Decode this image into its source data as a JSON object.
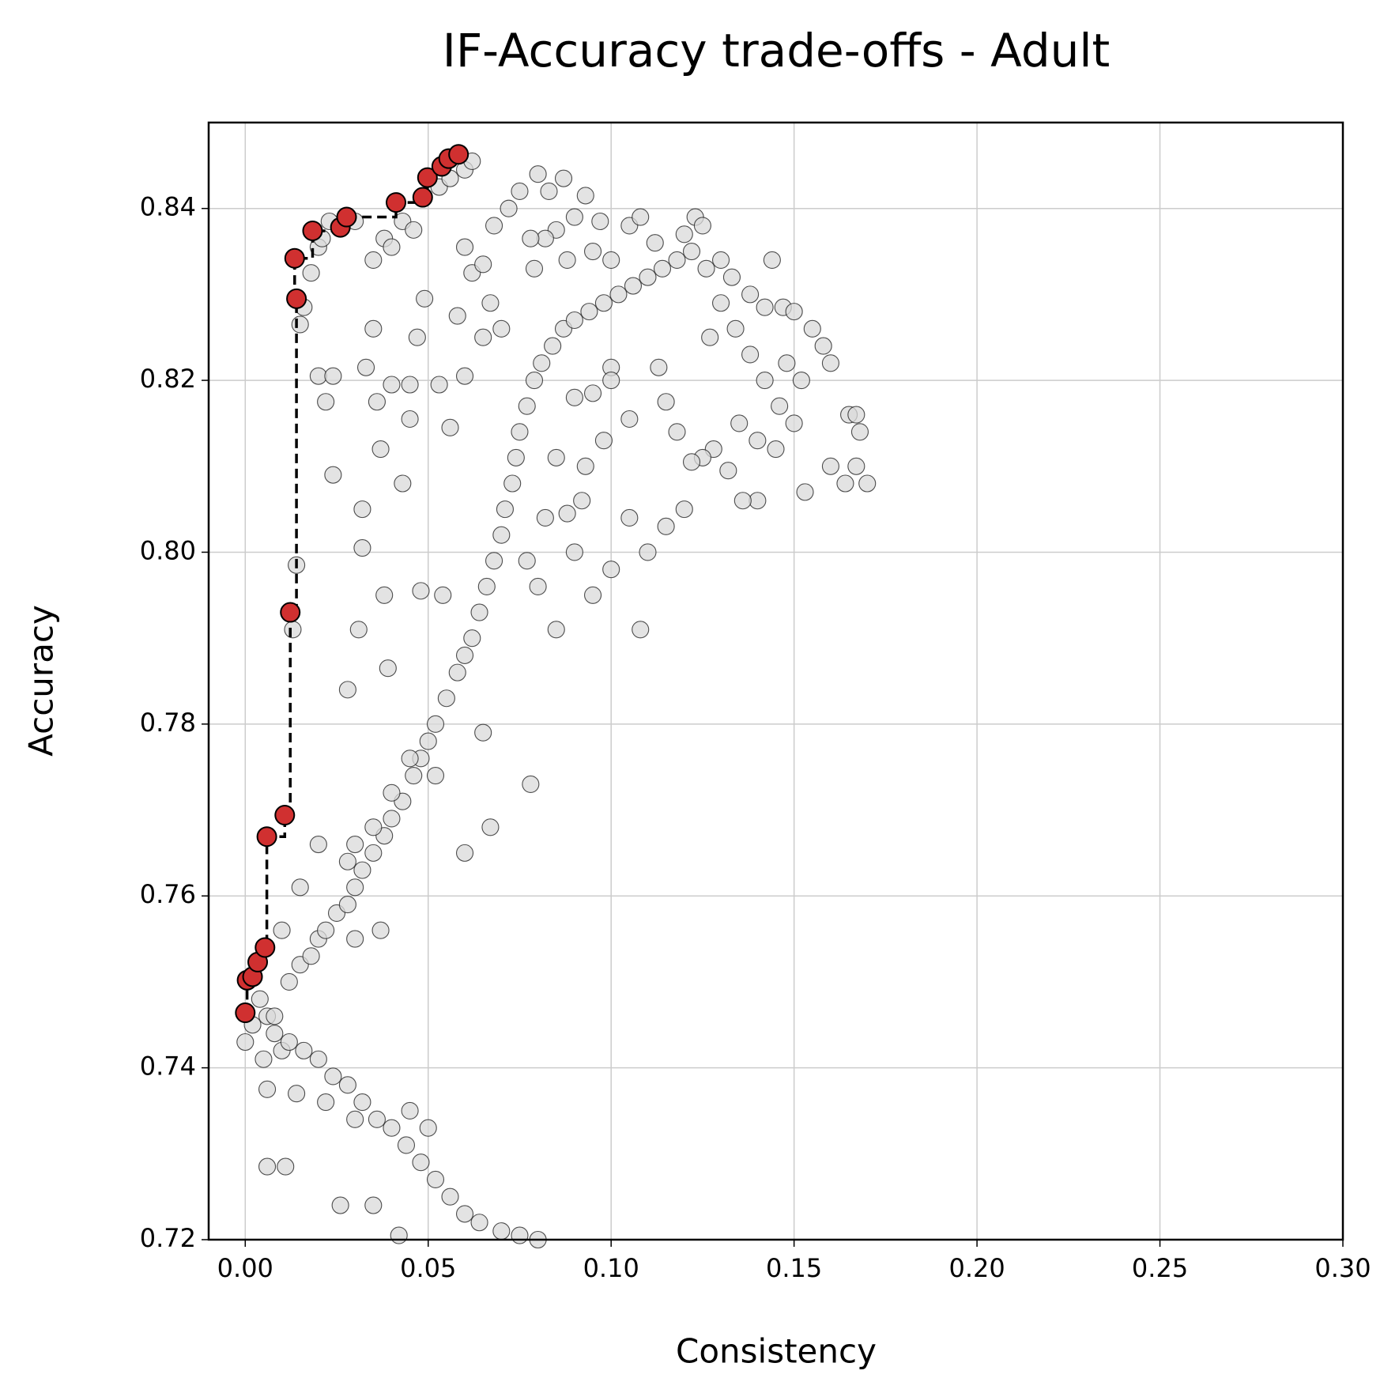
{
  "chart_data": {
    "type": "scatter",
    "title": "IF-Accuracy trade-offs - Adult",
    "x_label": "Consistency",
    "y_label": "Accuracy",
    "xlim": [
      -0.01,
      0.3
    ],
    "ylim": [
      0.72,
      0.85
    ],
    "xticks": [
      {
        "value": 0,
        "label": "0.00"
      },
      0.05,
      {
        "value": 0.1,
        "label": "0.10"
      },
      0.15,
      {
        "value": 0.2,
        "label": "0.20"
      },
      0.25,
      {
        "value": 0.3,
        "label": "0.30"
      }
    ],
    "yticks": [
      0.72,
      0.74,
      0.76,
      0.78,
      {
        "value": 0.8,
        "label": "0.80"
      },
      0.82,
      0.84
    ],
    "grid": true,
    "series": [
      {
        "color": "#d9d9d9",
        "x": [
          0,
          0.002,
          0.004,
          0.006,
          0.008,
          0.01,
          0.005,
          0.012,
          0.015,
          0.018,
          0.02,
          0.022,
          0.025,
          0.028,
          0.03,
          0.032,
          0.035,
          0.038,
          0.04,
          0.043,
          0.046,
          0.048,
          0.05,
          0.052,
          0.055,
          0.058,
          0.06,
          0.062,
          0.064,
          0.066,
          0.068,
          0.07,
          0.071,
          0.073,
          0.074,
          0.075,
          0.077,
          0.079,
          0.081,
          0.084,
          0.087,
          0.09,
          0.094,
          0.098,
          0.102,
          0.106,
          0.11,
          0.114,
          0.118,
          0.122,
          0.105,
          0.108,
          0.112,
          0.12,
          0.123,
          0.126,
          0.13,
          0.134,
          0.138,
          0.142,
          0.146,
          0.15,
          0.155,
          0.158,
          0.16,
          0.165,
          0.168,
          0.17,
          0.164,
          0.153,
          0.14,
          0.12,
          0.115,
          0.105,
          0.11,
          0.1,
          0.108,
          0.095,
          0.085,
          0.08,
          0.078,
          0.067,
          0.06,
          0.065,
          0.052,
          0.045,
          0.04,
          0.035,
          0.03,
          0.028,
          0.02,
          0.015,
          0.01,
          0.03,
          0.037,
          0.008,
          0.012,
          0.016,
          0.02,
          0.024,
          0.028,
          0.032,
          0.036,
          0.04,
          0.044,
          0.048,
          0.052,
          0.056,
          0.06,
          0.064,
          0.07,
          0.075,
          0.08,
          0.03,
          0.022,
          0.026,
          0.035,
          0.006,
          0.011,
          0.006,
          0.014,
          0.042,
          0.05,
          0.045,
          0.015,
          0.016,
          0.018,
          0.02,
          0.021,
          0.023,
          0.03,
          0.035,
          0.038,
          0.04,
          0.043,
          0.046,
          0.053,
          0.056,
          0.06,
          0.062,
          0.02,
          0.022,
          0.024,
          0.033,
          0.036,
          0.04,
          0.045,
          0.045,
          0.049,
          0.053,
          0.056,
          0.058,
          0.06,
          0.06,
          0.062,
          0.065,
          0.024,
          0.032,
          0.032,
          0.014,
          0.013,
          0.038,
          0.048,
          0.054,
          0.031,
          0.043,
          0.047,
          0.035,
          0.037,
          0.039,
          0.028,
          0.068,
          0.072,
          0.075,
          0.08,
          0.083,
          0.087,
          0.09,
          0.093,
          0.097,
          0.085,
          0.082,
          0.078,
          0.079,
          0.088,
          0.095,
          0.1,
          0.067,
          0.07,
          0.065,
          0.09,
          0.093,
          0.098,
          0.085,
          0.092,
          0.088,
          0.09,
          0.082,
          0.077,
          0.125,
          0.13,
          0.127,
          0.133,
          0.138,
          0.142,
          0.147,
          0.144,
          0.15,
          0.152,
          0.148,
          0.135,
          0.14,
          0.145,
          0.128,
          0.125,
          0.115,
          0.118,
          0.122,
          0.132,
          0.136,
          0.16,
          0.167,
          0.167,
          0.113,
          0.1,
          0.105,
          0.095,
          0.1
        ],
        "values": [
          0.743,
          0.745,
          0.748,
          0.746,
          0.744,
          0.742,
          0.741,
          0.75,
          0.752,
          0.753,
          0.755,
          0.756,
          0.758,
          0.759,
          0.761,
          0.763,
          0.765,
          0.767,
          0.769,
          0.771,
          0.774,
          0.776,
          0.778,
          0.78,
          0.783,
          0.786,
          0.788,
          0.79,
          0.793,
          0.796,
          0.799,
          0.802,
          0.805,
          0.808,
          0.811,
          0.814,
          0.817,
          0.82,
          0.822,
          0.824,
          0.826,
          0.827,
          0.828,
          0.829,
          0.83,
          0.831,
          0.832,
          0.833,
          0.834,
          0.835,
          0.838,
          0.839,
          0.836,
          0.837,
          0.839,
          0.833,
          0.829,
          0.826,
          0.823,
          0.82,
          0.817,
          0.815,
          0.826,
          0.824,
          0.822,
          0.816,
          0.814,
          0.808,
          0.808,
          0.807,
          0.806,
          0.805,
          0.803,
          0.804,
          0.8,
          0.798,
          0.791,
          0.795,
          0.791,
          0.796,
          0.773,
          0.768,
          0.765,
          0.779,
          0.774,
          0.776,
          0.772,
          0.768,
          0.766,
          0.764,
          0.766,
          0.761,
          0.756,
          0.755,
          0.756,
          0.746,
          0.743,
          0.742,
          0.741,
          0.739,
          0.738,
          0.736,
          0.734,
          0.733,
          0.731,
          0.729,
          0.727,
          0.725,
          0.723,
          0.722,
          0.721,
          0.7205,
          0.72,
          0.734,
          0.736,
          0.724,
          0.724,
          0.7285,
          0.7285,
          0.7375,
          0.737,
          0.7205,
          0.733,
          0.735,
          0.8265,
          0.8285,
          0.8325,
          0.8355,
          0.8365,
          0.8385,
          0.8385,
          0.834,
          0.8365,
          0.8355,
          0.8385,
          0.8375,
          0.8425,
          0.8435,
          0.8445,
          0.8455,
          0.8205,
          0.8175,
          0.8205,
          0.8215,
          0.8175,
          0.8195,
          0.8195,
          0.8155,
          0.8295,
          0.8195,
          0.8145,
          0.8275,
          0.8205,
          0.8355,
          0.8325,
          0.8335,
          0.809,
          0.805,
          0.8005,
          0.7985,
          0.791,
          0.795,
          0.7955,
          0.795,
          0.791,
          0.808,
          0.825,
          0.826,
          0.812,
          0.7865,
          0.784,
          0.838,
          0.84,
          0.842,
          0.844,
          0.842,
          0.8435,
          0.839,
          0.8415,
          0.8385,
          0.8375,
          0.8365,
          0.8365,
          0.833,
          0.834,
          0.835,
          0.834,
          0.829,
          0.826,
          0.825,
          0.818,
          0.81,
          0.813,
          0.811,
          0.806,
          0.8045,
          0.8,
          0.804,
          0.799,
          0.838,
          0.834,
          0.825,
          0.832,
          0.83,
          0.8285,
          0.8285,
          0.834,
          0.828,
          0.82,
          0.822,
          0.815,
          0.813,
          0.812,
          0.812,
          0.811,
          0.8175,
          0.814,
          0.8105,
          0.8095,
          0.806,
          0.81,
          0.81,
          0.816,
          0.8215,
          0.8215,
          0.8155,
          0.8185,
          0.82
        ]
      },
      {
        "color": "#d03030",
        "line": "steps-post",
        "linestyle": "dashed",
        "x": [
          0,
          0.0005,
          0.002,
          0.0034,
          0.0054,
          0.0059,
          0.0108,
          0.0123,
          0.014,
          0.0135,
          0.0184,
          0.026,
          0.0277,
          0.0412,
          0.0485,
          0.0498,
          0.0537,
          0.0556,
          0.0583
        ],
        "values": [
          0.7464,
          0.7502,
          0.7506,
          0.7523,
          0.754,
          0.7669,
          0.7694,
          0.793,
          0.8295,
          0.8342,
          0.8374,
          0.8378,
          0.839,
          0.8407,
          0.8413,
          0.8436,
          0.8449,
          0.8458,
          0.8463
        ]
      }
    ]
  }
}
